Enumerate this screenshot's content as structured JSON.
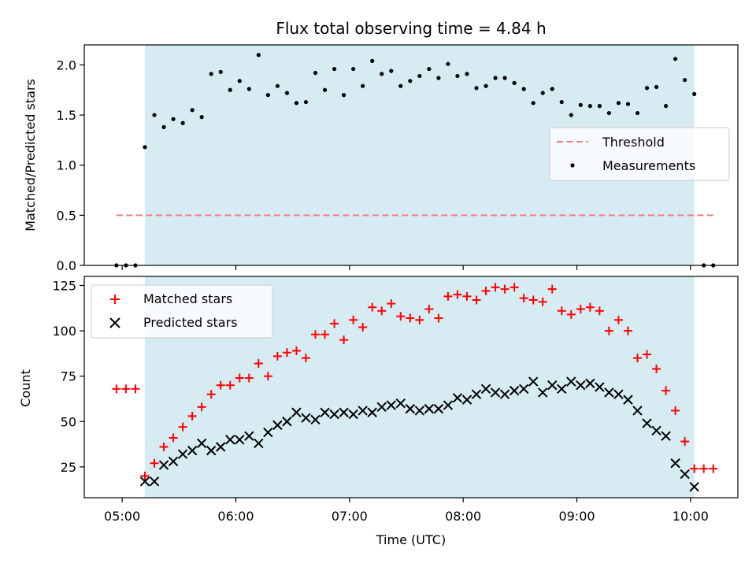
{
  "chart_data": [
    {
      "type": "scatter",
      "title": "Flux total observing time = 4.84 h",
      "ylabel": "Matched/Predicted stars",
      "ylim": [
        0,
        2.2
      ],
      "yticks": [
        0.0,
        0.5,
        1.0,
        1.5,
        2.0
      ],
      "ytick_labels": [
        "0.0",
        "0.5",
        "1.0",
        "1.5",
        "2.0"
      ],
      "shaded_interval": [
        "05:12",
        "10:02"
      ],
      "threshold": {
        "name": "Threshold",
        "value": 0.5,
        "from": "04:57",
        "to": "10:12",
        "style": "dashed",
        "color": "#f08080"
      },
      "series": [
        {
          "name": "Measurements",
          "color": "#000000",
          "points": [
            [
              "04:57",
              0
            ],
            [
              "05:02",
              0
            ],
            [
              "05:07",
              0
            ],
            [
              "05:12",
              1.18
            ],
            [
              "05:17",
              1.5
            ],
            [
              "05:22",
              1.38
            ],
            [
              "05:27",
              1.46
            ],
            [
              "05:32",
              1.42
            ],
            [
              "05:37",
              1.55
            ],
            [
              "05:42",
              1.48
            ],
            [
              "05:47",
              1.91
            ],
            [
              "05:52",
              1.93
            ],
            [
              "05:57",
              1.75
            ],
            [
              "06:02",
              1.84
            ],
            [
              "06:07",
              1.76
            ],
            [
              "06:12",
              2.1
            ],
            [
              "06:17",
              1.7
            ],
            [
              "06:22",
              1.79
            ],
            [
              "06:27",
              1.72
            ],
            [
              "06:32",
              1.62
            ],
            [
              "06:37",
              1.63
            ],
            [
              "06:42",
              1.92
            ],
            [
              "06:47",
              1.75
            ],
            [
              "06:52",
              1.96
            ],
            [
              "06:57",
              1.7
            ],
            [
              "07:02",
              1.96
            ],
            [
              "07:07",
              1.79
            ],
            [
              "07:12",
              2.04
            ],
            [
              "07:17",
              1.91
            ],
            [
              "07:22",
              1.94
            ],
            [
              "07:27",
              1.79
            ],
            [
              "07:32",
              1.84
            ],
            [
              "07:37",
              1.89
            ],
            [
              "07:42",
              1.96
            ],
            [
              "07:47",
              1.87
            ],
            [
              "07:52",
              2.01
            ],
            [
              "07:57",
              1.89
            ],
            [
              "08:02",
              1.91
            ],
            [
              "08:07",
              1.77
            ],
            [
              "08:12",
              1.79
            ],
            [
              "08:17",
              1.87
            ],
            [
              "08:22",
              1.87
            ],
            [
              "08:27",
              1.82
            ],
            [
              "08:32",
              1.76
            ],
            [
              "08:37",
              1.62
            ],
            [
              "08:42",
              1.72
            ],
            [
              "08:47",
              1.76
            ],
            [
              "08:52",
              1.63
            ],
            [
              "08:57",
              1.5
            ],
            [
              "09:02",
              1.6
            ],
            [
              "09:07",
              1.59
            ],
            [
              "09:12",
              1.59
            ],
            [
              "09:17",
              1.52
            ],
            [
              "09:22",
              1.62
            ],
            [
              "09:27",
              1.61
            ],
            [
              "09:32",
              1.52
            ],
            [
              "09:37",
              1.77
            ],
            [
              "09:42",
              1.78
            ],
            [
              "09:47",
              1.59
            ],
            [
              "09:52",
              2.06
            ],
            [
              "09:57",
              1.85
            ],
            [
              "10:02",
              1.71
            ],
            [
              "10:07",
              0
            ],
            [
              "10:12",
              0
            ]
          ]
        }
      ],
      "legend": {
        "placement": "center-right",
        "entries": [
          "Threshold",
          "Measurements"
        ]
      }
    },
    {
      "type": "scatter",
      "xlabel": "Time (UTC)",
      "ylabel": "Count",
      "ylim": [
        8,
        130
      ],
      "yticks": [
        25,
        50,
        75,
        100,
        125
      ],
      "ytick_labels": [
        "25",
        "50",
        "75",
        "100",
        "125"
      ],
      "xlim": [
        "04:40",
        "10:25"
      ],
      "xticks": [
        "05:00",
        "06:00",
        "07:00",
        "08:00",
        "09:00",
        "10:00"
      ],
      "xtick_labels": [
        "05:00",
        "06:00",
        "07:00",
        "08:00",
        "09:00",
        "10:00"
      ],
      "shaded_interval": [
        "05:12",
        "10:02"
      ],
      "series": [
        {
          "name": "Matched stars",
          "marker": "plus",
          "color": "#ff0000",
          "points": [
            [
              "04:57",
              68
            ],
            [
              "05:02",
              68
            ],
            [
              "05:07",
              68
            ],
            [
              "05:12",
              20
            ],
            [
              "05:17",
              27
            ],
            [
              "05:22",
              36
            ],
            [
              "05:27",
              41
            ],
            [
              "05:32",
              47
            ],
            [
              "05:37",
              53
            ],
            [
              "05:42",
              58
            ],
            [
              "05:47",
              65
            ],
            [
              "05:52",
              70
            ],
            [
              "05:57",
              70
            ],
            [
              "06:02",
              74
            ],
            [
              "06:07",
              74
            ],
            [
              "06:12",
              82
            ],
            [
              "06:17",
              75
            ],
            [
              "06:22",
              86
            ],
            [
              "06:27",
              88
            ],
            [
              "06:32",
              89
            ],
            [
              "06:37",
              85
            ],
            [
              "06:42",
              98
            ],
            [
              "06:47",
              98
            ],
            [
              "06:52",
              104
            ],
            [
              "06:57",
              95
            ],
            [
              "07:02",
              106
            ],
            [
              "07:07",
              102
            ],
            [
              "07:12",
              113
            ],
            [
              "07:17",
              111
            ],
            [
              "07:22",
              115
            ],
            [
              "07:27",
              108
            ],
            [
              "07:32",
              107
            ],
            [
              "07:37",
              106
            ],
            [
              "07:42",
              112
            ],
            [
              "07:47",
              107
            ],
            [
              "07:52",
              119
            ],
            [
              "07:57",
              120
            ],
            [
              "08:02",
              119
            ],
            [
              "08:07",
              117
            ],
            [
              "08:12",
              122
            ],
            [
              "08:17",
              124
            ],
            [
              "08:22",
              123
            ],
            [
              "08:27",
              124
            ],
            [
              "08:32",
              118
            ],
            [
              "08:37",
              117
            ],
            [
              "08:42",
              116
            ],
            [
              "08:47",
              123
            ],
            [
              "08:52",
              111
            ],
            [
              "08:57",
              109
            ],
            [
              "09:02",
              112
            ],
            [
              "09:07",
              113
            ],
            [
              "09:12",
              111
            ],
            [
              "09:17",
              100
            ],
            [
              "09:22",
              106
            ],
            [
              "09:27",
              100
            ],
            [
              "09:32",
              85
            ],
            [
              "09:37",
              87
            ],
            [
              "09:42",
              79
            ],
            [
              "09:47",
              67
            ],
            [
              "09:52",
              56
            ],
            [
              "09:57",
              39
            ],
            [
              "10:02",
              24
            ],
            [
              "10:07",
              24
            ],
            [
              "10:12",
              24
            ]
          ]
        },
        {
          "name": "Predicted stars",
          "marker": "x",
          "color": "#000000",
          "points": [
            [
              "05:12",
              17
            ],
            [
              "05:17",
              17
            ],
            [
              "05:22",
              26
            ],
            [
              "05:27",
              28
            ],
            [
              "05:32",
              32
            ],
            [
              "05:37",
              34
            ],
            [
              "05:42",
              38
            ],
            [
              "05:47",
              34
            ],
            [
              "05:52",
              36
            ],
            [
              "05:57",
              40
            ],
            [
              "06:02",
              40
            ],
            [
              "06:07",
              42
            ],
            [
              "06:12",
              38
            ],
            [
              "06:17",
              44
            ],
            [
              "06:22",
              48
            ],
            [
              "06:27",
              50
            ],
            [
              "06:32",
              55
            ],
            [
              "06:37",
              52
            ],
            [
              "06:42",
              51
            ],
            [
              "06:47",
              55
            ],
            [
              "06:52",
              54
            ],
            [
              "06:57",
              55
            ],
            [
              "07:02",
              54
            ],
            [
              "07:07",
              56
            ],
            [
              "07:12",
              55
            ],
            [
              "07:17",
              58
            ],
            [
              "07:22",
              59
            ],
            [
              "07:27",
              60
            ],
            [
              "07:32",
              57
            ],
            [
              "07:37",
              56
            ],
            [
              "07:42",
              57
            ],
            [
              "07:47",
              57
            ],
            [
              "07:52",
              59
            ],
            [
              "07:57",
              63
            ],
            [
              "08:02",
              62
            ],
            [
              "08:07",
              65
            ],
            [
              "08:12",
              68
            ],
            [
              "08:17",
              66
            ],
            [
              "08:22",
              65
            ],
            [
              "08:27",
              67
            ],
            [
              "08:32",
              68
            ],
            [
              "08:37",
              72
            ],
            [
              "08:42",
              66
            ],
            [
              "08:47",
              70
            ],
            [
              "08:52",
              68
            ],
            [
              "08:57",
              72
            ],
            [
              "09:02",
              70
            ],
            [
              "09:07",
              71
            ],
            [
              "09:12",
              69
            ],
            [
              "09:17",
              66
            ],
            [
              "09:22",
              65
            ],
            [
              "09:27",
              62
            ],
            [
              "09:32",
              56
            ],
            [
              "09:37",
              49
            ],
            [
              "09:42",
              45
            ],
            [
              "09:47",
              42
            ],
            [
              "09:52",
              27
            ],
            [
              "09:57",
              21
            ],
            [
              "10:02",
              14
            ]
          ]
        }
      ],
      "legend": {
        "placement": "upper-left",
        "entries": [
          "Matched stars",
          "Predicted stars"
        ]
      }
    }
  ],
  "colors": {
    "shade": "#add8e6",
    "threshold": "#f08080",
    "matched": "#ff0000",
    "predicted": "#000000",
    "measurements": "#000000"
  }
}
